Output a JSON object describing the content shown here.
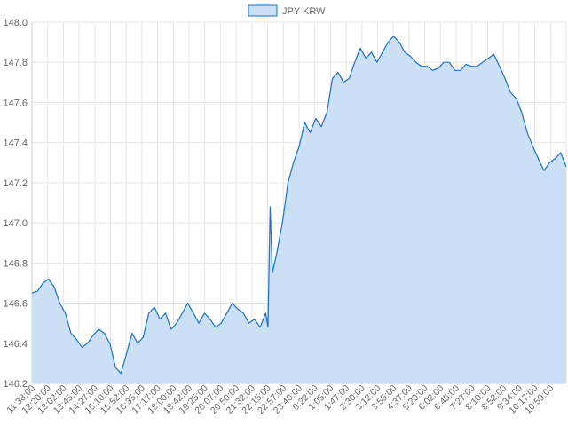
{
  "chart_data": {
    "type": "area",
    "series": [
      {
        "name": "JPY KRW",
        "color": "#1a6fc8",
        "fill": "#cce0f5"
      }
    ],
    "ylim": [
      146.2,
      148.0
    ],
    "yticks": [
      "148.0",
      "147.8",
      "147.6",
      "147.4",
      "147.2",
      "147.0",
      "146.8",
      "146.6",
      "146.4",
      "146.2"
    ],
    "xticks": [
      "11:38:00",
      "12:20:00",
      "13:02:00",
      "13:45:00",
      "14:27:00",
      "15:10:00",
      "15:52:00",
      "16:35:00",
      "17:17:00",
      "18:00:00",
      "18:42:00",
      "19:25:00",
      "20:07:00",
      "20:50:00",
      "21:32:00",
      "22:15:00",
      "22:57:00",
      "23:40:00",
      "0:22:00",
      "1:05:00",
      "1:47:00",
      "2:30:00",
      "3:12:00",
      "3:55:00",
      "4:37:00",
      "5:20:00",
      "6:02:00",
      "6:45:00",
      "7:27:00",
      "8:10:00",
      "8:52:00",
      "9:34:00",
      "10:17:00",
      "10:59:00"
    ],
    "grid": true,
    "legend_position": "top-center",
    "points": [
      [
        0,
        146.65
      ],
      [
        0.5,
        146.66
      ],
      [
        1,
        146.7
      ],
      [
        1.5,
        146.72
      ],
      [
        2,
        146.68
      ],
      [
        2.5,
        146.6
      ],
      [
        3,
        146.55
      ],
      [
        3.5,
        146.45
      ],
      [
        4,
        146.42
      ],
      [
        4.5,
        146.38
      ],
      [
        5,
        146.4
      ],
      [
        5.5,
        146.44
      ],
      [
        6,
        146.47
      ],
      [
        6.5,
        146.45
      ],
      [
        7,
        146.4
      ],
      [
        7.5,
        146.28
      ],
      [
        8,
        146.25
      ],
      [
        8.5,
        146.35
      ],
      [
        9,
        146.45
      ],
      [
        9.5,
        146.4
      ],
      [
        10,
        146.43
      ],
      [
        10.5,
        146.55
      ],
      [
        11,
        146.58
      ],
      [
        11.5,
        146.52
      ],
      [
        12,
        146.55
      ],
      [
        12.5,
        146.47
      ],
      [
        13,
        146.5
      ],
      [
        13.5,
        146.55
      ],
      [
        14,
        146.6
      ],
      [
        14.5,
        146.55
      ],
      [
        15,
        146.5
      ],
      [
        15.5,
        146.55
      ],
      [
        16,
        146.52
      ],
      [
        16.5,
        146.48
      ],
      [
        17,
        146.5
      ],
      [
        17.5,
        146.55
      ],
      [
        18,
        146.6
      ],
      [
        18.5,
        146.57
      ],
      [
        19,
        146.55
      ],
      [
        19.5,
        146.5
      ],
      [
        20,
        146.52
      ],
      [
        20.5,
        146.48
      ],
      [
        21,
        146.55
      ],
      [
        21.2,
        146.48
      ],
      [
        21.4,
        147.08
      ],
      [
        21.6,
        146.75
      ],
      [
        22,
        146.85
      ],
      [
        22.5,
        147.0
      ],
      [
        23,
        147.2
      ],
      [
        23.5,
        147.3
      ],
      [
        24,
        147.38
      ],
      [
        24.5,
        147.5
      ],
      [
        25,
        147.45
      ],
      [
        25.5,
        147.52
      ],
      [
        26,
        147.48
      ],
      [
        26.5,
        147.55
      ],
      [
        27,
        147.72
      ],
      [
        27.5,
        147.75
      ],
      [
        28,
        147.7
      ],
      [
        28.5,
        147.72
      ],
      [
        29,
        147.8
      ],
      [
        29.5,
        147.87
      ],
      [
        30,
        147.82
      ],
      [
        30.5,
        147.85
      ],
      [
        31,
        147.8
      ],
      [
        31.5,
        147.85
      ],
      [
        32,
        147.9
      ],
      [
        32.5,
        147.93
      ],
      [
        33,
        147.9
      ],
      [
        33.5,
        147.85
      ],
      [
        34,
        147.83
      ],
      [
        34.5,
        147.8
      ],
      [
        35,
        147.78
      ],
      [
        35.5,
        147.78
      ],
      [
        36,
        147.76
      ],
      [
        36.5,
        147.77
      ],
      [
        37,
        147.8
      ],
      [
        37.5,
        147.8
      ],
      [
        38,
        147.76
      ],
      [
        38.5,
        147.76
      ],
      [
        39,
        147.79
      ],
      [
        39.5,
        147.78
      ],
      [
        40,
        147.78
      ],
      [
        40.5,
        147.8
      ],
      [
        41,
        147.82
      ],
      [
        41.5,
        147.84
      ],
      [
        42,
        147.78
      ],
      [
        42.5,
        147.72
      ],
      [
        43,
        147.65
      ],
      [
        43.5,
        147.62
      ],
      [
        44,
        147.55
      ],
      [
        44.5,
        147.45
      ],
      [
        45,
        147.38
      ],
      [
        45.5,
        147.32
      ],
      [
        46,
        147.26
      ],
      [
        46.5,
        147.3
      ],
      [
        47,
        147.32
      ],
      [
        47.5,
        147.35
      ],
      [
        48,
        147.28
      ]
    ]
  }
}
